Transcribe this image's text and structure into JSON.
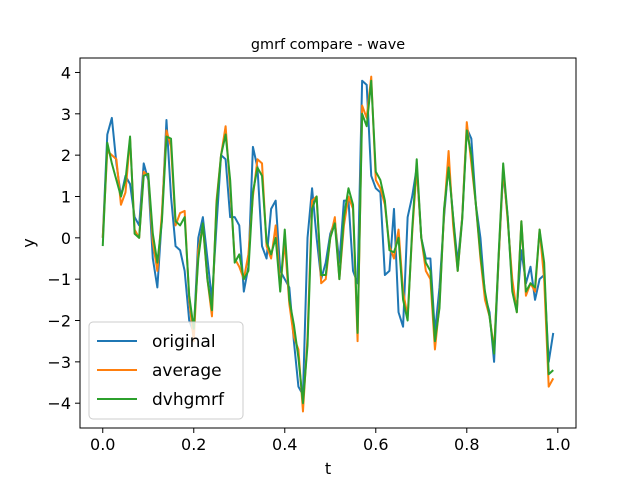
{
  "chart_data": {
    "type": "line",
    "title": "gmrf compare - wave",
    "xlabel": "t",
    "ylabel": "y",
    "xlim": [
      -0.05,
      1.04
    ],
    "ylim": [
      -4.6,
      4.35
    ],
    "xticks": [
      0.0,
      0.2,
      0.4,
      0.6,
      0.8,
      1.0
    ],
    "xtick_labels": [
      "0.0",
      "0.2",
      "0.4",
      "0.6",
      "0.8",
      "1.0"
    ],
    "yticks": [
      -4,
      -3,
      -2,
      -1,
      0,
      1,
      2,
      3,
      4
    ],
    "ytick_labels": [
      "−4",
      "−3",
      "−2",
      "−1",
      "0",
      "1",
      "2",
      "3",
      "4"
    ],
    "grid": false,
    "legend_position": "lower-left",
    "x": [
      0.0,
      0.01,
      0.02,
      0.03,
      0.04,
      0.05,
      0.06,
      0.07,
      0.08,
      0.09,
      0.1,
      0.11,
      0.12,
      0.13,
      0.14,
      0.15,
      0.16,
      0.17,
      0.18,
      0.19,
      0.2,
      0.21,
      0.22,
      0.23,
      0.24,
      0.25,
      0.26,
      0.27,
      0.28,
      0.29,
      0.3,
      0.31,
      0.32,
      0.33,
      0.34,
      0.35,
      0.36,
      0.37,
      0.38,
      0.39,
      0.4,
      0.41,
      0.42,
      0.43,
      0.44,
      0.45,
      0.46,
      0.47,
      0.48,
      0.49,
      0.5,
      0.51,
      0.52,
      0.53,
      0.54,
      0.55,
      0.56,
      0.57,
      0.58,
      0.59,
      0.6,
      0.61,
      0.62,
      0.63,
      0.64,
      0.65,
      0.66,
      0.67,
      0.68,
      0.69,
      0.7,
      0.71,
      0.72,
      0.73,
      0.74,
      0.75,
      0.76,
      0.77,
      0.78,
      0.79,
      0.8,
      0.81,
      0.82,
      0.83,
      0.84,
      0.85,
      0.86,
      0.87,
      0.88,
      0.89,
      0.9,
      0.91,
      0.92,
      0.93,
      0.94,
      0.95,
      0.96,
      0.97,
      0.98,
      0.99
    ],
    "series": [
      {
        "name": "original",
        "color": "#1f77b4",
        "values": [
          0.0,
          2.5,
          2.9,
          1.8,
          1.0,
          1.5,
          1.3,
          0.5,
          0.3,
          1.8,
          1.4,
          -0.5,
          -1.2,
          0.5,
          2.85,
          1.0,
          -0.2,
          -0.3,
          -0.8,
          -2.0,
          -2.3,
          0.0,
          0.5,
          -0.5,
          -1.5,
          0.3,
          2.0,
          1.9,
          0.5,
          0.5,
          0.3,
          -1.3,
          -0.7,
          2.2,
          1.7,
          -0.2,
          -0.5,
          0.7,
          0.9,
          -0.8,
          -1.0,
          -1.2,
          -2.5,
          -3.6,
          -3.8,
          0.0,
          1.2,
          0.0,
          -1.0,
          -0.6,
          0.1,
          0.4,
          -0.6,
          0.9,
          0.9,
          -0.8,
          -1.1,
          3.8,
          3.7,
          1.5,
          1.2,
          1.1,
          -0.9,
          -0.8,
          0.7,
          -1.8,
          -2.15,
          0.5,
          1.0,
          1.7,
          0.0,
          -0.5,
          -0.5,
          -2.3,
          -1.2,
          0.5,
          1.8,
          0.5,
          -0.6,
          0.5,
          2.65,
          2.4,
          0.8,
          0.0,
          -1.4,
          -1.8,
          -3.0,
          -0.5,
          1.6,
          0.5,
          -1.2,
          -1.7,
          -0.3,
          -1.1,
          -0.7,
          -1.5,
          -1.0,
          -0.9,
          -3.0,
          -2.3
        ]
      },
      {
        "name": "average",
        "color": "#ff7f0e",
        "values": [
          0.0,
          2.1,
          2.0,
          1.9,
          0.8,
          1.1,
          2.4,
          0.2,
          0.0,
          1.6,
          1.5,
          -0.1,
          -0.8,
          0.6,
          2.6,
          2.2,
          0.3,
          0.6,
          0.65,
          -1.5,
          -2.5,
          -0.3,
          0.3,
          -1.0,
          -1.9,
          0.9,
          2.0,
          2.7,
          1.2,
          -0.5,
          -0.7,
          -1.0,
          -0.4,
          1.0,
          1.9,
          1.8,
          -0.2,
          -0.5,
          0.3,
          -1.2,
          -0.1,
          -1.6,
          -2.4,
          -2.7,
          -4.2,
          -2.4,
          0.9,
          1.0,
          -1.1,
          -1.0,
          0.0,
          0.5,
          -1.0,
          0.3,
          1.0,
          0.7,
          -2.5,
          3.2,
          2.9,
          3.9,
          1.4,
          1.2,
          0.8,
          -0.2,
          -0.5,
          0.2,
          -1.3,
          -1.9,
          0.1,
          1.7,
          0.0,
          -0.8,
          -1.0,
          -2.7,
          -1.6,
          0.6,
          2.1,
          0.3,
          -0.8,
          0.5,
          2.8,
          1.8,
          0.8,
          -0.5,
          -1.5,
          -1.9,
          -2.7,
          -0.5,
          1.7,
          0.4,
          -1.0,
          -1.8,
          0.4,
          -1.4,
          -1.1,
          -1.3,
          0.2,
          -1.0,
          -3.6,
          -3.4
        ]
      },
      {
        "name": "dvhgmrf",
        "color": "#2ca02c",
        "values": [
          -0.2,
          2.3,
          1.8,
          1.4,
          1.0,
          1.4,
          2.45,
          0.1,
          0.0,
          1.5,
          1.55,
          0.1,
          -0.6,
          0.4,
          2.45,
          2.4,
          0.4,
          0.3,
          0.5,
          -1.4,
          -2.2,
          -0.5,
          0.35,
          -1.0,
          -1.75,
          0.8,
          2.0,
          2.5,
          1.4,
          -0.6,
          -0.4,
          -1.0,
          -0.8,
          1.1,
          1.7,
          1.5,
          -0.1,
          -0.4,
          0.0,
          -1.3,
          0.2,
          -1.5,
          -2.1,
          -2.9,
          -4.0,
          -2.6,
          0.7,
          1.0,
          -0.9,
          -0.9,
          0.0,
          0.35,
          -1.0,
          0.5,
          1.2,
          0.8,
          -2.3,
          3.0,
          2.7,
          3.8,
          1.6,
          1.4,
          0.9,
          -0.3,
          -0.35,
          0.0,
          -1.5,
          -2.0,
          0.2,
          1.9,
          0.0,
          -0.6,
          -0.8,
          -2.5,
          -1.7,
          0.7,
          1.7,
          0.5,
          -0.8,
          0.45,
          2.6,
          2.0,
          0.8,
          -0.4,
          -1.3,
          -1.9,
          -2.8,
          -0.4,
          1.8,
          0.5,
          -1.3,
          -1.8,
          0.4,
          -1.3,
          -1.1,
          -1.2,
          0.2,
          -0.6,
          -3.3,
          -3.2
        ]
      }
    ]
  }
}
